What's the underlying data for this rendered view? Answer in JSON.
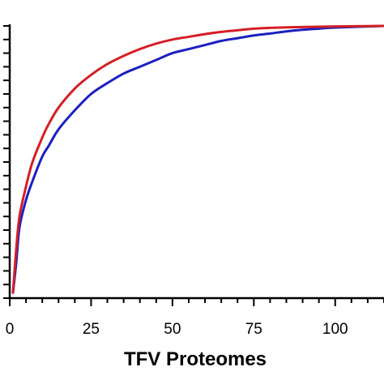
{
  "chart_data": {
    "type": "line",
    "title": "",
    "xlabel": "TFV Proteomes",
    "ylabel": "",
    "xlim": [
      0,
      115
    ],
    "ylim": [
      0,
      100
    ],
    "x_ticks": [
      0,
      25,
      50,
      75,
      100
    ],
    "x_tick_labels": [
      "0",
      "25",
      "50",
      "75",
      "100"
    ],
    "y_minor_tick_count": 21,
    "grid": false,
    "legend": "none",
    "series": [
      {
        "color": "#d41f26",
        "x": [
          1,
          2,
          3,
          5,
          7,
          10,
          12,
          15,
          20,
          25,
          30,
          35,
          40,
          45,
          50,
          55,
          60,
          65,
          70,
          75,
          80,
          90,
          100,
          115
        ],
        "y": [
          2,
          18,
          30,
          41,
          50,
          59,
          64,
          70,
          77,
          82,
          86,
          89,
          91.5,
          93.5,
          95,
          96,
          97,
          97.8,
          98.4,
          99,
          99.3,
          99.6,
          99.8,
          100
        ]
      },
      {
        "color": "#1c1fbf",
        "x": [
          1,
          2,
          3,
          5,
          7,
          10,
          12,
          15,
          20,
          25,
          30,
          35,
          40,
          45,
          50,
          55,
          60,
          65,
          70,
          75,
          80,
          85,
          90,
          95,
          100,
          115
        ],
        "y": [
          2,
          13,
          26,
          36,
          43,
          52,
          56,
          62,
          69,
          75,
          79,
          82.5,
          85,
          87.5,
          90,
          91.5,
          93,
          94.5,
          95.5,
          96.5,
          97.2,
          98,
          98.6,
          99,
          99.4,
          100
        ]
      }
    ]
  }
}
